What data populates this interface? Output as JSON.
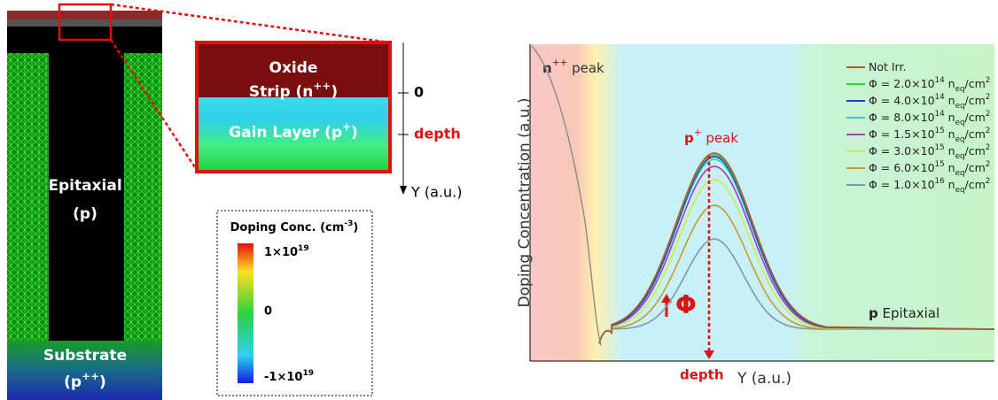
{
  "device": {
    "epitaxial": "Epitaxial",
    "epitaxial_type": "(p)",
    "substrate": "Substrate",
    "substrate_type": [
      {
        "text": "(p"
      },
      {
        "sup": "++"
      },
      {
        "text": ")"
      }
    ]
  },
  "zoom": {
    "oxide": "Oxide",
    "strip": [
      {
        "text": "Strip (n"
      },
      {
        "sup": "++"
      },
      {
        "text": ")"
      }
    ],
    "gain": [
      {
        "text": "Gain Layer (p"
      },
      {
        "sup": "+"
      },
      {
        "text": ")"
      }
    ]
  },
  "axis": {
    "zero": "0",
    "depth": "depth",
    "label": "Y (a.u.)"
  },
  "colorbar": {
    "title": [
      {
        "text": "Doping Conc. (cm"
      },
      {
        "sup": "-3"
      },
      {
        "text": ")"
      }
    ],
    "max": [
      {
        "text": "1×10"
      },
      {
        "sup": "19"
      }
    ],
    "mid": "0",
    "min": [
      {
        "text": "-1×10"
      },
      {
        "sup": "19"
      }
    ]
  },
  "plot": {
    "ylabel": "Doping Concentration (a.u.)",
    "xlabel": "Y (a.u.)",
    "depth": "depth",
    "n_peak": [
      {
        "b": "n"
      },
      {
        "sup": "++"
      },
      {
        "text": " peak"
      }
    ],
    "p_peak": [
      {
        "b": "p"
      },
      {
        "sup": "+"
      },
      {
        "text": " peak"
      }
    ],
    "epitaxial": [
      {
        "b": "p"
      },
      {
        "text": " Epitaxial"
      }
    ],
    "phi": "Φ",
    "legend": [
      {
        "color": "#b5542c",
        "parts": [
          {
            "text": "Not Irr."
          }
        ]
      },
      {
        "color": "#3ccc3c",
        "parts": [
          {
            "text": "Φ = 2.0×10"
          },
          {
            "sup": "14"
          },
          {
            "text": " n"
          },
          {
            "sub": "eq"
          },
          {
            "text": "/cm"
          },
          {
            "sup": "2"
          }
        ]
      },
      {
        "color": "#2040c8",
        "parts": [
          {
            "text": "Φ = 4.0×10"
          },
          {
            "sup": "14"
          },
          {
            "text": " n"
          },
          {
            "sub": "eq"
          },
          {
            "text": "/cm"
          },
          {
            "sup": "2"
          }
        ]
      },
      {
        "color": "#30d0c0",
        "parts": [
          {
            "text": "Φ = 8.0×10"
          },
          {
            "sup": "14"
          },
          {
            "text": " n"
          },
          {
            "sub": "eq"
          },
          {
            "text": "/cm"
          },
          {
            "sup": "2"
          }
        ]
      },
      {
        "color": "#a838c8",
        "parts": [
          {
            "text": "Φ = 1.5×10"
          },
          {
            "sup": "15"
          },
          {
            "text": " n"
          },
          {
            "sub": "eq"
          },
          {
            "text": "/cm"
          },
          {
            "sup": "2"
          }
        ]
      },
      {
        "color": "#c8f040",
        "parts": [
          {
            "text": "Φ = 3.0×10"
          },
          {
            "sup": "15"
          },
          {
            "text": " n"
          },
          {
            "sub": "eq"
          },
          {
            "text": "/cm"
          },
          {
            "sup": "2"
          }
        ]
      },
      {
        "color": "#c89a30",
        "parts": [
          {
            "text": "Φ = 6.0×10"
          },
          {
            "sup": "15"
          },
          {
            "text": " n"
          },
          {
            "sub": "eq"
          },
          {
            "text": "/cm"
          },
          {
            "sup": "2"
          }
        ]
      },
      {
        "color": "#7a9c9c",
        "parts": [
          {
            "text": "Φ = 1.0×10"
          },
          {
            "sup": "16"
          },
          {
            "text": " n"
          },
          {
            "sub": "eq"
          },
          {
            "text": "/cm"
          },
          {
            "sup": "2"
          }
        ]
      }
    ]
  }
}
